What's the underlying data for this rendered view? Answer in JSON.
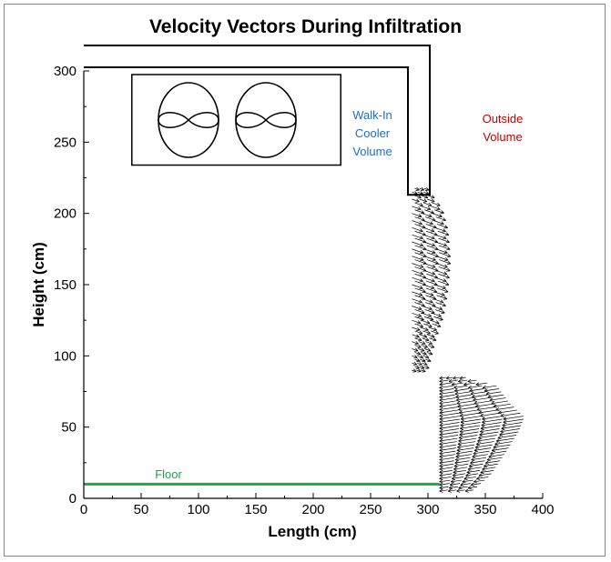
{
  "title": "Velocity Vectors During Infiltration",
  "colors": {
    "walkin": "#1f6fc5",
    "outside": "#c00000",
    "floor": "#1aa84a",
    "vectors": "#000000"
  },
  "annotations": {
    "walkin_lines": [
      "Walk-In",
      "Cooler",
      "Volume"
    ],
    "outside_lines": [
      "Outside",
      "Volume"
    ],
    "floor": "Floor"
  },
  "chart_data": {
    "type": "vector-field",
    "xlabel": "Length (cm)",
    "ylabel": "Height (cm)",
    "xlim": [
      0,
      400
    ],
    "ylim": [
      0,
      300
    ],
    "x_ticks": [
      "0",
      "50",
      "100",
      "150",
      "200",
      "250",
      "300",
      "350",
      "400"
    ],
    "y_ticks": [
      "0",
      "50",
      "100",
      "150",
      "200",
      "250",
      "300"
    ],
    "floor_height_cm": 10,
    "door_top_height_cm": 213,
    "wall_x_cm": 300,
    "fan_unit_box": {
      "x": [
        30,
        220
      ],
      "y": [
        232,
        300
      ]
    },
    "outflow_profile_upper": [
      {
        "y": 90,
        "length": 12
      },
      {
        "y": 110,
        "length": 18
      },
      {
        "y": 130,
        "length": 26
      },
      {
        "y": 150,
        "length": 30
      },
      {
        "y": 170,
        "length": 32
      },
      {
        "y": 190,
        "length": 30
      },
      {
        "y": 205,
        "length": 25
      },
      {
        "y": 218,
        "length": 12
      }
    ],
    "inflow_profile_lower": [
      {
        "y": 5,
        "length": 30
      },
      {
        "y": 15,
        "length": 45
      },
      {
        "y": 30,
        "length": 58
      },
      {
        "y": 45,
        "length": 70
      },
      {
        "y": 55,
        "length": 75
      },
      {
        "y": 65,
        "length": 62
      },
      {
        "y": 78,
        "length": 50
      },
      {
        "y": 85,
        "length": 20
      }
    ]
  }
}
